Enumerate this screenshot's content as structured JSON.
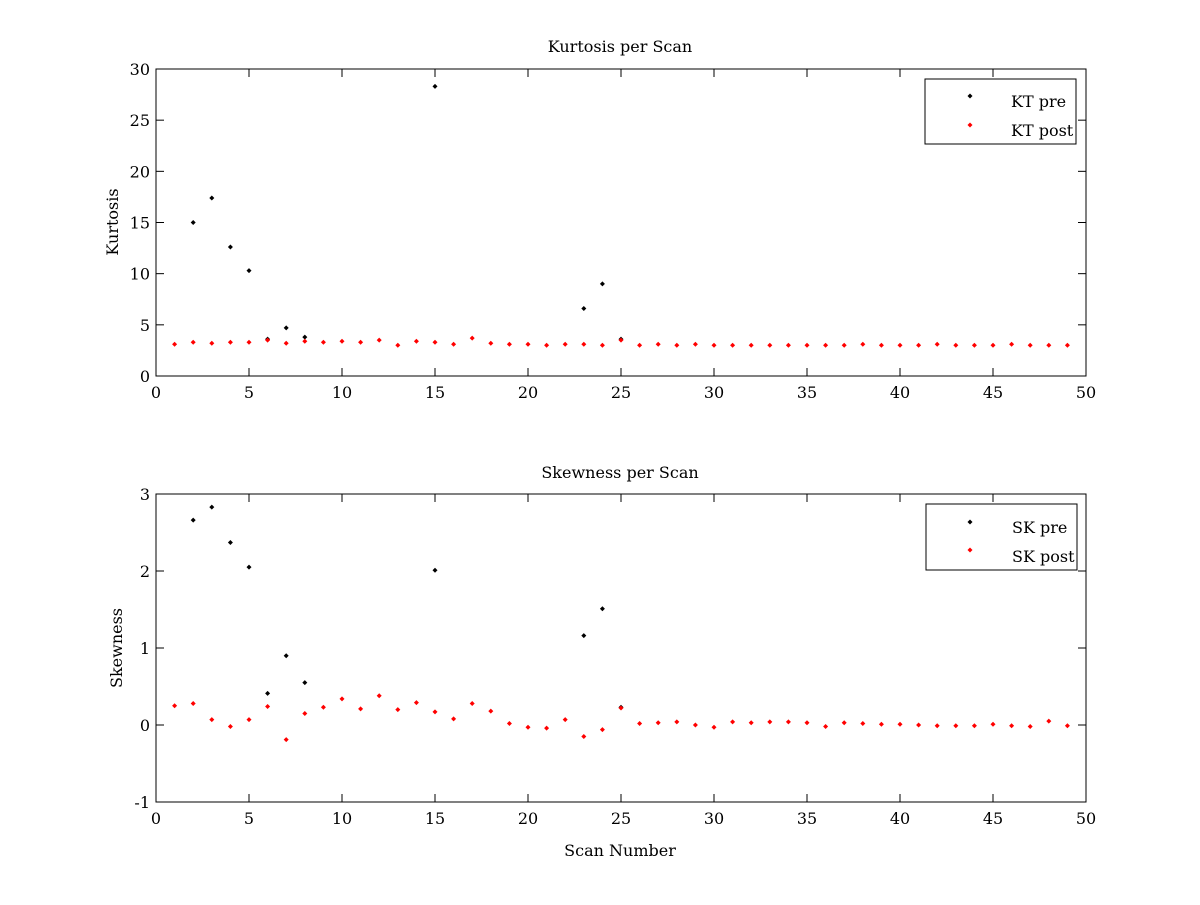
{
  "chart_data": [
    {
      "id": "kurtosis",
      "type": "scatter",
      "title": "Kurtosis per Scan",
      "xlabel": "",
      "ylabel": "Kurtosis",
      "xlim": [
        0,
        50
      ],
      "ylim": [
        0,
        30
      ],
      "xticks": [
        0,
        5,
        10,
        15,
        20,
        25,
        30,
        35,
        40,
        45,
        50
      ],
      "yticks": [
        0,
        5,
        10,
        15,
        20,
        25,
        30
      ],
      "grid": false,
      "legend_position": "top-right",
      "series": [
        {
          "name": "KT pre",
          "color": "#000000",
          "marker": "diamond",
          "points": [
            [
              2,
              15.0
            ],
            [
              3,
              17.4
            ],
            [
              4,
              12.6
            ],
            [
              5,
              10.3
            ],
            [
              6,
              3.6
            ],
            [
              7,
              4.7
            ],
            [
              8,
              3.8
            ],
            [
              15,
              28.3
            ],
            [
              23,
              6.6
            ],
            [
              24,
              9.0
            ],
            [
              25,
              3.6
            ]
          ]
        },
        {
          "name": "KT post",
          "color": "#ff0000",
          "marker": "diamond",
          "points": [
            [
              1,
              3.1
            ],
            [
              2,
              3.3
            ],
            [
              3,
              3.2
            ],
            [
              4,
              3.3
            ],
            [
              5,
              3.3
            ],
            [
              6,
              3.5
            ],
            [
              7,
              3.2
            ],
            [
              8,
              3.4
            ],
            [
              9,
              3.3
            ],
            [
              10,
              3.4
            ],
            [
              11,
              3.3
            ],
            [
              12,
              3.5
            ],
            [
              13,
              3.0
            ],
            [
              14,
              3.4
            ],
            [
              15,
              3.3
            ],
            [
              16,
              3.1
            ],
            [
              17,
              3.7
            ],
            [
              18,
              3.2
            ],
            [
              19,
              3.1
            ],
            [
              20,
              3.1
            ],
            [
              21,
              3.0
            ],
            [
              22,
              3.1
            ],
            [
              23,
              3.1
            ],
            [
              24,
              3.0
            ],
            [
              25,
              3.5
            ],
            [
              26,
              3.0
            ],
            [
              27,
              3.1
            ],
            [
              28,
              3.0
            ],
            [
              29,
              3.1
            ],
            [
              30,
              3.0
            ],
            [
              31,
              3.0
            ],
            [
              32,
              3.0
            ],
            [
              33,
              3.0
            ],
            [
              34,
              3.0
            ],
            [
              35,
              3.0
            ],
            [
              36,
              3.0
            ],
            [
              37,
              3.0
            ],
            [
              38,
              3.1
            ],
            [
              39,
              3.0
            ],
            [
              40,
              3.0
            ],
            [
              41,
              3.0
            ],
            [
              42,
              3.1
            ],
            [
              43,
              3.0
            ],
            [
              44,
              3.0
            ],
            [
              45,
              3.0
            ],
            [
              46,
              3.1
            ],
            [
              47,
              3.0
            ],
            [
              48,
              3.0
            ],
            [
              49,
              3.0
            ]
          ]
        }
      ]
    },
    {
      "id": "skewness",
      "type": "scatter",
      "title": "Skewness per Scan",
      "xlabel": "Scan Number",
      "ylabel": "Skewness",
      "xlim": [
        0,
        50
      ],
      "ylim": [
        -1,
        3
      ],
      "xticks": [
        0,
        5,
        10,
        15,
        20,
        25,
        30,
        35,
        40,
        45,
        50
      ],
      "yticks": [
        -1,
        0,
        1,
        2,
        3
      ],
      "grid": false,
      "legend_position": "top-right",
      "series": [
        {
          "name": "SK pre",
          "color": "#000000",
          "marker": "diamond",
          "points": [
            [
              2,
              2.66
            ],
            [
              3,
              2.83
            ],
            [
              4,
              2.37
            ],
            [
              5,
              2.05
            ],
            [
              6,
              0.41
            ],
            [
              7,
              0.9
            ],
            [
              8,
              0.55
            ],
            [
              15,
              2.01
            ],
            [
              23,
              1.16
            ],
            [
              24,
              1.51
            ],
            [
              25,
              0.23
            ]
          ]
        },
        {
          "name": "SK post",
          "color": "#ff0000",
          "marker": "diamond",
          "points": [
            [
              1,
              0.25
            ],
            [
              2,
              0.28
            ],
            [
              3,
              0.07
            ],
            [
              4,
              -0.02
            ],
            [
              5,
              0.07
            ],
            [
              6,
              0.24
            ],
            [
              7,
              -0.19
            ],
            [
              8,
              0.15
            ],
            [
              9,
              0.23
            ],
            [
              10,
              0.34
            ],
            [
              11,
              0.21
            ],
            [
              12,
              0.38
            ],
            [
              13,
              0.2
            ],
            [
              14,
              0.29
            ],
            [
              15,
              0.17
            ],
            [
              16,
              0.08
            ],
            [
              17,
              0.28
            ],
            [
              18,
              0.18
            ],
            [
              19,
              0.02
            ],
            [
              20,
              -0.03
            ],
            [
              21,
              -0.04
            ],
            [
              22,
              0.07
            ],
            [
              23,
              -0.15
            ],
            [
              24,
              -0.06
            ],
            [
              25,
              0.22
            ],
            [
              26,
              0.02
            ],
            [
              27,
              0.03
            ],
            [
              28,
              0.04
            ],
            [
              29,
              0.0
            ],
            [
              30,
              -0.03
            ],
            [
              31,
              0.04
            ],
            [
              32,
              0.03
            ],
            [
              33,
              0.04
            ],
            [
              34,
              0.04
            ],
            [
              35,
              0.03
            ],
            [
              36,
              -0.02
            ],
            [
              37,
              0.03
            ],
            [
              38,
              0.02
            ],
            [
              39,
              0.01
            ],
            [
              40,
              0.01
            ],
            [
              41,
              0.0
            ],
            [
              42,
              -0.01
            ],
            [
              43,
              -0.01
            ],
            [
              44,
              -0.01
            ],
            [
              45,
              0.01
            ],
            [
              46,
              -0.01
            ],
            [
              47,
              -0.02
            ],
            [
              48,
              0.05
            ],
            [
              49,
              -0.01
            ]
          ]
        }
      ]
    }
  ]
}
